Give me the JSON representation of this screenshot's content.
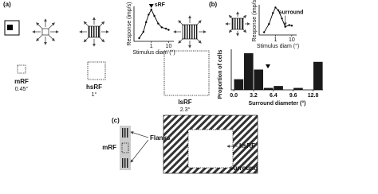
{
  "panels": {
    "a": {
      "label": "(a)",
      "fields": [
        {
          "name": "mRF",
          "size": "0.45°"
        },
        {
          "name": "hsRF",
          "size": "1°"
        },
        {
          "name": "lsRF",
          "size": "2.3°"
        }
      ]
    },
    "b": {
      "label": "(b)"
    },
    "c": {
      "label": "(c)",
      "mrf": "mRF",
      "flanks": "Flanks",
      "hsrf": "hsRF",
      "surround": "surround"
    }
  },
  "chart_data": [
    {
      "type": "line",
      "ylabel": "Response (imp/s)",
      "xlabel": "Stimulus diam (°)",
      "annotation": "sRF",
      "x": [
        0.2,
        0.35,
        0.5,
        0.7,
        1,
        1.5,
        2.5,
        4,
        7,
        10
      ],
      "values": [
        5,
        15,
        30,
        42,
        50,
        40,
        28,
        22,
        20,
        18
      ],
      "xlim": [
        0.1,
        20
      ],
      "ylim": [
        0,
        55
      ],
      "xticks": [
        1,
        10
      ],
      "xscale": "log",
      "color": "#000000"
    },
    {
      "type": "line",
      "ylabel": "Response (imp/s)",
      "xlabel": "Stimulus diam (°)",
      "annotation": "surround",
      "x": [
        0.2,
        0.4,
        0.7,
        1,
        1.5,
        2.5,
        4,
        7,
        10
      ],
      "values": [
        5,
        20,
        40,
        50,
        45,
        30,
        15,
        18,
        17
      ],
      "xlim": [
        0.1,
        20
      ],
      "ylim": [
        0,
        55
      ],
      "xticks": [
        1,
        10
      ],
      "xscale": "log",
      "color": "#000000"
    },
    {
      "type": "histogram",
      "ylabel": "Proportion of cells",
      "xlabel": "Surround diameter (°)",
      "bins": [
        0,
        1.6,
        3.2,
        4.8,
        6.4,
        8,
        9.6,
        11.2,
        12.8,
        14.4
      ],
      "values": [
        0.11,
        0.38,
        0.21,
        0.02,
        0.04,
        0,
        0.02,
        0,
        0.29
      ],
      "xlim": [
        -0.4,
        14.4
      ],
      "ylim": [
        0,
        0.42
      ],
      "xticks": [
        {
          "value": 0,
          "label": "0.0"
        },
        3.2,
        6.4,
        9.6,
        12.8
      ],
      "color": "#1a1a1a"
    }
  ]
}
